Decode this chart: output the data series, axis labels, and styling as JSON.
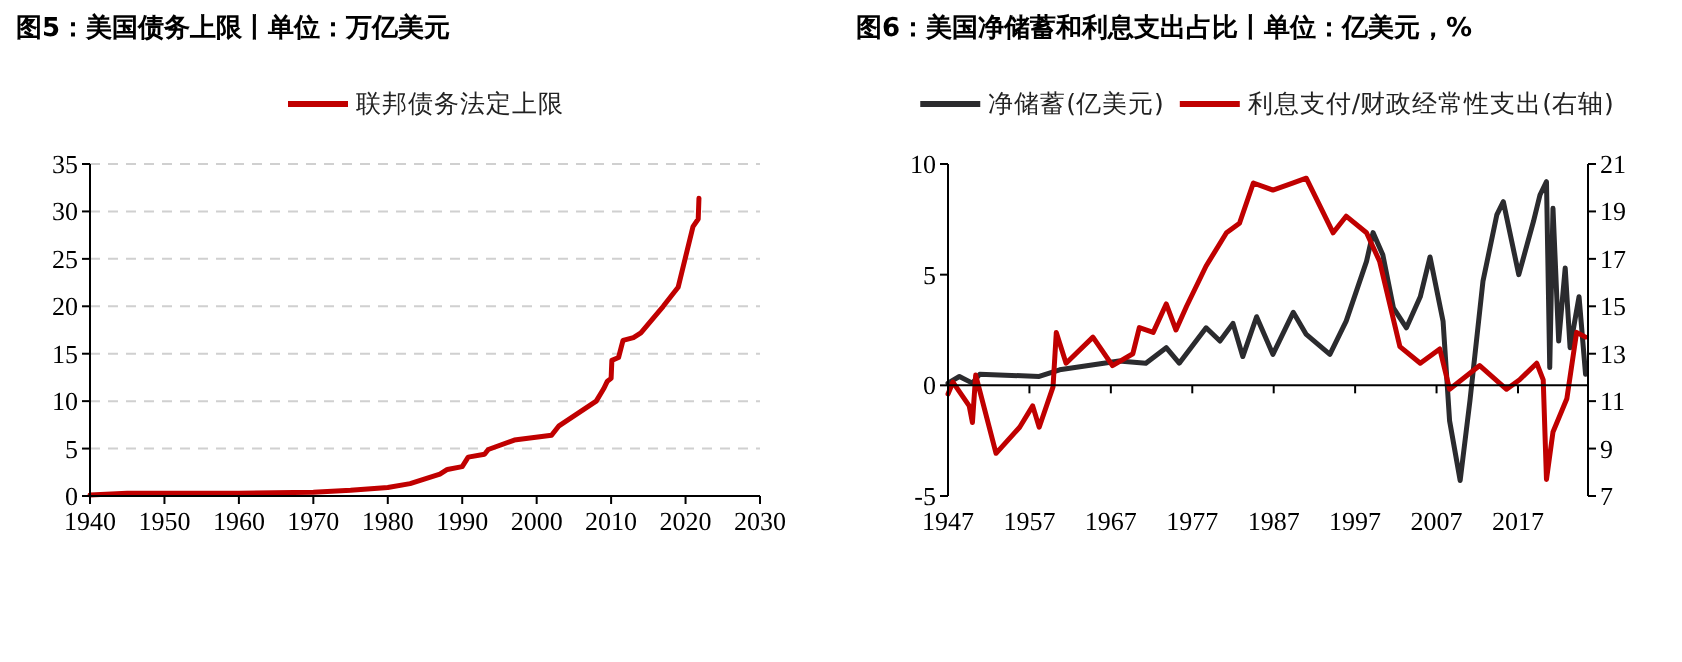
{
  "chart_data": [
    {
      "type": "line",
      "title": "图5：美国债务上限丨单位：万亿美元",
      "legend": "top",
      "grid": "y",
      "x": [
        1940,
        1945,
        1960,
        1970,
        1975,
        1980,
        1983,
        1985,
        1987,
        1988,
        1990,
        1990.8,
        1993,
        1993.5,
        1997,
        2002,
        2003,
        2008,
        2009,
        2009.5,
        2010,
        2010.1,
        2011,
        2011.6,
        2013,
        2014,
        2017,
        2019,
        2021,
        2021.7,
        2021.8
      ],
      "series": [
        {
          "name": "联邦债务法定上限",
          "color": "#c00000",
          "values": [
            0.1,
            0.3,
            0.3,
            0.4,
            0.6,
            0.9,
            1.3,
            1.8,
            2.3,
            2.8,
            3.1,
            4.1,
            4.4,
            4.9,
            5.9,
            6.4,
            7.4,
            10.0,
            11.3,
            12.1,
            12.4,
            14.3,
            14.6,
            16.4,
            16.7,
            17.2,
            20.0,
            22.0,
            28.4,
            29.2,
            31.4
          ]
        }
      ],
      "xlim": [
        1940,
        2030
      ],
      "xticks": [
        1940,
        1950,
        1960,
        1970,
        1980,
        1990,
        2000,
        2010,
        2020,
        2030
      ],
      "ylim": [
        0,
        35
      ],
      "yticks": [
        0,
        5,
        10,
        15,
        20,
        25,
        30,
        35
      ]
    },
    {
      "type": "line",
      "title": "图6：美国净储蓄和利息支出占比丨单位：亿美元，%",
      "legend": "top",
      "series": [
        {
          "name": "净储蓄(亿美元)",
          "color": "#2b2b2e",
          "x": [
            1947,
            1948.4,
            1950,
            1950.9,
            1958.2,
            1960.7,
            1968,
            1971.3,
            1973.8,
            1975.4,
            1978.7,
            1980.4,
            1982,
            1983.2,
            1984.9,
            1986.9,
            1989.4,
            1991,
            1993.9,
            1995.9,
            1998.4,
            1999.2,
            2000.4,
            2001.7,
            2003.3,
            2005,
            2006.2,
            2007.8,
            2008.6,
            2009.9,
            2011.1,
            2012.7,
            2014.4,
            2015.2,
            2017.1,
            2018.9,
            2019.7,
            2020.5,
            2020.9,
            2021.3,
            2022,
            2022.8,
            2023.4,
            2024.5,
            2025.3
          ],
          "values": [
            0.1,
            0.4,
            0.1,
            0.5,
            0.4,
            0.7,
            1.1,
            1.0,
            1.7,
            1.0,
            2.6,
            2.0,
            2.8,
            1.3,
            3.1,
            1.4,
            3.3,
            2.3,
            1.4,
            2.9,
            5.6,
            6.9,
            5.9,
            3.5,
            2.6,
            4.0,
            5.8,
            2.9,
            -1.6,
            -4.3,
            -0.7,
            4.7,
            7.7,
            8.3,
            5.0,
            7.4,
            8.6,
            9.2,
            0.8,
            8.0,
            2.0,
            5.3,
            1.7,
            4.0,
            0.5
          ]
        },
        {
          "name": "利息支付/财政经常性支出(右轴)",
          "color": "#c00000",
          "axis": "y2",
          "x": [
            1947,
            1947.6,
            1949.6,
            1950,
            1950.4,
            1952.9,
            1955.8,
            1957.4,
            1958.2,
            1959.9,
            1960.3,
            1961.5,
            1964.8,
            1967.2,
            1969.7,
            1970.5,
            1972.2,
            1973.8,
            1975,
            1976.3,
            1978.7,
            1981.2,
            1982.8,
            1984.5,
            1986.9,
            1989.4,
            1991,
            1994.3,
            1995.9,
            1998.4,
            2000,
            2002.5,
            2005,
            2007.4,
            2008.6,
            2012.3,
            2015.6,
            2017.2,
            2019.3,
            2020.1,
            2020.5,
            2021.3,
            2023,
            2024.2,
            2025.3
          ],
          "values": [
            11.3,
            11.8,
            10.8,
            10.1,
            12.1,
            8.8,
            9.9,
            10.8,
            9.9,
            11.6,
            13.9,
            12.6,
            13.7,
            12.5,
            13.0,
            14.1,
            13.9,
            15.1,
            14.0,
            15.0,
            16.7,
            18.1,
            18.5,
            20.2,
            19.9,
            20.2,
            20.4,
            18.1,
            18.8,
            18.1,
            16.9,
            13.3,
            12.6,
            13.2,
            11.5,
            12.5,
            11.5,
            11.9,
            12.6,
            11.9,
            7.7,
            9.7,
            11.1,
            13.9,
            13.7
          ]
        }
      ],
      "xlim": [
        1947,
        2025.6
      ],
      "xticks": [
        1947,
        1957,
        1967,
        1977,
        1987,
        1997,
        2007,
        2017
      ],
      "ylim": [
        -5,
        10
      ],
      "yticks": [
        -5,
        0,
        5,
        10
      ],
      "y2lim": [
        7,
        21
      ],
      "y2ticks": [
        7,
        9,
        11,
        13,
        15,
        17,
        19,
        21
      ]
    }
  ]
}
